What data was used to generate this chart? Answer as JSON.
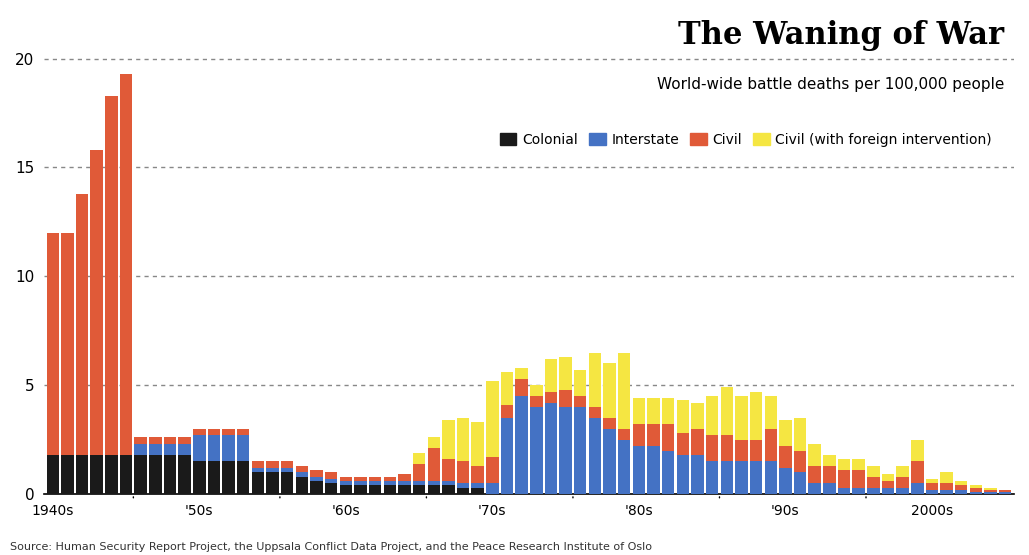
{
  "title": "The Waning of War",
  "subtitle": "World-wide battle deaths per 100,000 people",
  "source": "Source: Human Security Report Project, the Uppsala Conflict Data Project, and the Peace Research Institute of Oslo",
  "years": [
    1940,
    1941,
    1942,
    1943,
    1944,
    1945,
    1946,
    1947,
    1948,
    1949,
    1950,
    1951,
    1952,
    1953,
    1954,
    1955,
    1956,
    1957,
    1958,
    1959,
    1960,
    1961,
    1962,
    1963,
    1964,
    1965,
    1966,
    1967,
    1968,
    1969,
    1970,
    1971,
    1972,
    1973,
    1974,
    1975,
    1976,
    1977,
    1978,
    1979,
    1980,
    1981,
    1982,
    1983,
    1984,
    1985,
    1986,
    1987,
    1988,
    1989,
    1990,
    1991,
    1992,
    1993,
    1994,
    1995,
    1996,
    1997,
    1998,
    1999,
    2000,
    2001,
    2002,
    2003,
    2004,
    2005
  ],
  "colonial": [
    1.8,
    1.8,
    1.8,
    1.8,
    1.8,
    1.8,
    1.8,
    1.8,
    1.8,
    1.8,
    1.5,
    1.5,
    1.5,
    1.5,
    1.0,
    1.0,
    1.0,
    0.8,
    0.6,
    0.5,
    0.4,
    0.4,
    0.4,
    0.4,
    0.4,
    0.4,
    0.4,
    0.4,
    0.3,
    0.3,
    0.0,
    0.0,
    0.0,
    0.0,
    0.0,
    0.0,
    0.0,
    0.0,
    0.0,
    0.0,
    0.0,
    0.0,
    0.0,
    0.0,
    0.0,
    0.0,
    0.0,
    0.0,
    0.0,
    0.0,
    0.0,
    0.0,
    0.0,
    0.0,
    0.0,
    0.0,
    0.0,
    0.0,
    0.0,
    0.0,
    0.0,
    0.0,
    0.0,
    0.0,
    0.0,
    0.0
  ],
  "interstate": [
    0.0,
    0.0,
    0.0,
    0.0,
    0.0,
    0.0,
    0.5,
    0.5,
    0.5,
    0.5,
    1.2,
    1.2,
    1.2,
    1.2,
    0.2,
    0.2,
    0.2,
    0.2,
    0.2,
    0.2,
    0.2,
    0.2,
    0.2,
    0.2,
    0.2,
    0.2,
    0.2,
    0.2,
    0.2,
    0.2,
    0.5,
    3.5,
    4.5,
    4.0,
    4.2,
    4.0,
    4.0,
    3.5,
    3.0,
    2.5,
    2.2,
    2.2,
    2.0,
    1.8,
    1.8,
    1.5,
    1.5,
    1.5,
    1.5,
    1.5,
    1.2,
    1.0,
    0.5,
    0.5,
    0.3,
    0.3,
    0.3,
    0.3,
    0.3,
    0.5,
    0.2,
    0.2,
    0.2,
    0.1,
    0.1,
    0.1
  ],
  "civil": [
    10.2,
    10.2,
    12.0,
    14.0,
    16.5,
    17.5,
    0.3,
    0.3,
    0.3,
    0.3,
    0.3,
    0.3,
    0.3,
    0.3,
    0.3,
    0.3,
    0.3,
    0.3,
    0.3,
    0.3,
    0.2,
    0.2,
    0.2,
    0.2,
    0.3,
    0.8,
    1.5,
    1.0,
    1.0,
    0.8,
    1.2,
    0.6,
    0.8,
    0.5,
    0.5,
    0.8,
    0.5,
    0.5,
    0.5,
    0.5,
    1.0,
    1.0,
    1.2,
    1.0,
    1.2,
    1.2,
    1.2,
    1.0,
    1.0,
    1.5,
    1.0,
    1.0,
    0.8,
    0.8,
    0.8,
    0.8,
    0.5,
    0.3,
    0.5,
    1.0,
    0.3,
    0.3,
    0.2,
    0.2,
    0.1,
    0.1
  ],
  "civil_foreign": [
    0.0,
    0.0,
    0.0,
    0.0,
    0.0,
    0.0,
    0.0,
    0.0,
    0.0,
    0.0,
    0.0,
    0.0,
    0.0,
    0.0,
    0.0,
    0.0,
    0.0,
    0.0,
    0.0,
    0.0,
    0.0,
    0.0,
    0.0,
    0.0,
    0.0,
    0.5,
    0.5,
    1.8,
    2.0,
    2.0,
    3.5,
    1.5,
    0.5,
    0.5,
    1.5,
    1.5,
    1.2,
    2.5,
    2.5,
    3.5,
    1.2,
    1.2,
    1.2,
    1.5,
    1.2,
    1.8,
    2.2,
    2.0,
    2.2,
    1.5,
    1.2,
    1.5,
    1.0,
    0.5,
    0.5,
    0.5,
    0.5,
    0.3,
    0.5,
    1.0,
    0.2,
    0.5,
    0.2,
    0.1,
    0.1,
    0.0
  ],
  "color_colonial": "#1a1a1a",
  "color_interstate": "#4472c4",
  "color_civil": "#e05a38",
  "color_civil_foreign": "#f5e642",
  "ylim": [
    0,
    22
  ],
  "yticks": [
    0,
    5,
    10,
    15,
    20
  ],
  "bar_width": 0.85,
  "decade_tick_years": [
    1946,
    1956,
    1966,
    1976,
    1986,
    1996
  ],
  "decade_label_years": [
    1940,
    1950,
    1960,
    1970,
    1980,
    1990,
    2000
  ],
  "decade_labels": [
    "1940s",
    "'50s",
    "'60s",
    "'70s",
    "'80s",
    "'90s",
    "2000s"
  ]
}
